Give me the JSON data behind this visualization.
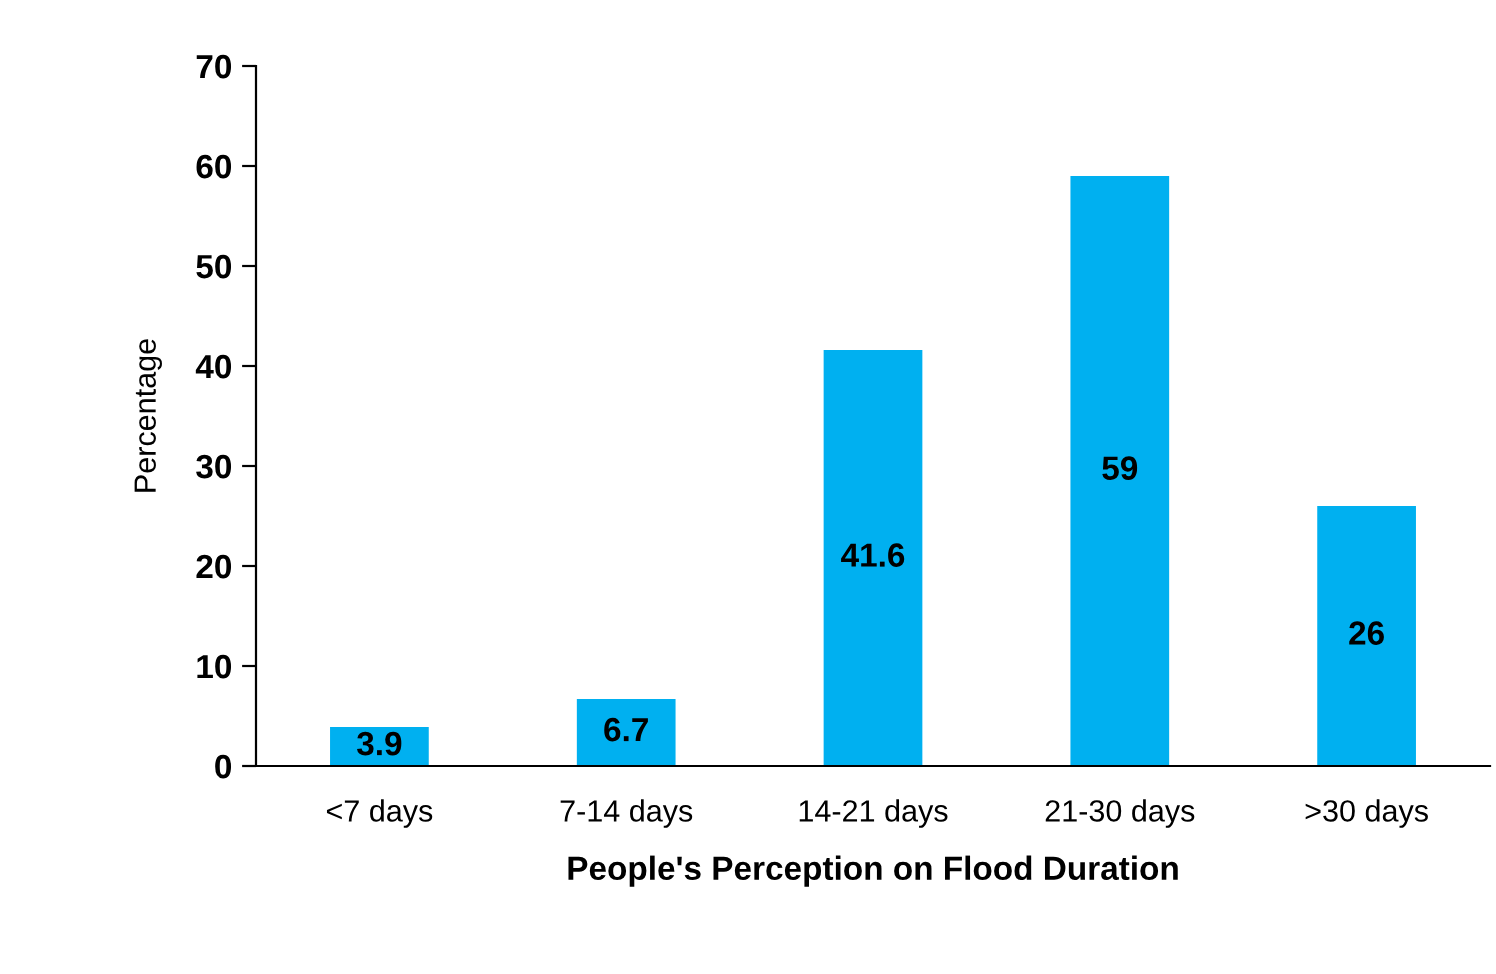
{
  "chart_data": {
    "type": "bar",
    "xlabel": "People's Perception on Flood Duration",
    "ylabel": "Percentage",
    "categories": [
      "<7 days",
      "7-14 days",
      "14-21 days",
      "21-30 days",
      ">30 days"
    ],
    "values": [
      3.9,
      6.7,
      41.6,
      59,
      26
    ],
    "color": "#00b0f0",
    "ylim": [
      0,
      70
    ],
    "yticks": [
      0,
      10,
      20,
      30,
      40,
      50,
      60,
      70
    ],
    "grid": false,
    "data_labels": true
  }
}
